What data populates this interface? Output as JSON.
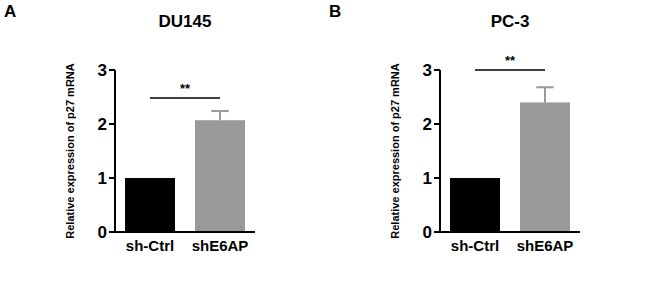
{
  "chart_data": [
    {
      "type": "bar",
      "panel_label": "A",
      "title": "DU145",
      "categories": [
        "sh-Ctrl",
        "shE6AP"
      ],
      "values": [
        1,
        2.07
      ],
      "errors": [
        0,
        0.17
      ],
      "colors": [
        "#000000",
        "#999999"
      ],
      "y_label": "Relative expression of p27 mRNA",
      "ylim": [
        0,
        3
      ],
      "yticks": [
        0,
        1,
        2,
        3
      ],
      "annotations": [
        {
          "label": "**",
          "y": 2.48
        }
      ]
    },
    {
      "type": "bar",
      "panel_label": "B",
      "title": "PC-3",
      "categories": [
        "sh-Ctrl",
        "shE6AP"
      ],
      "values": [
        1,
        2.4
      ],
      "errors": [
        0,
        0.28
      ],
      "colors": [
        "#000000",
        "#999999"
      ],
      "y_label": "Relative expression of p27 mRNA",
      "ylim": [
        0,
        3
      ],
      "yticks": [
        0,
        1,
        2,
        3
      ],
      "annotations": [
        {
          "label": "**",
          "y": 3.0
        }
      ]
    }
  ]
}
